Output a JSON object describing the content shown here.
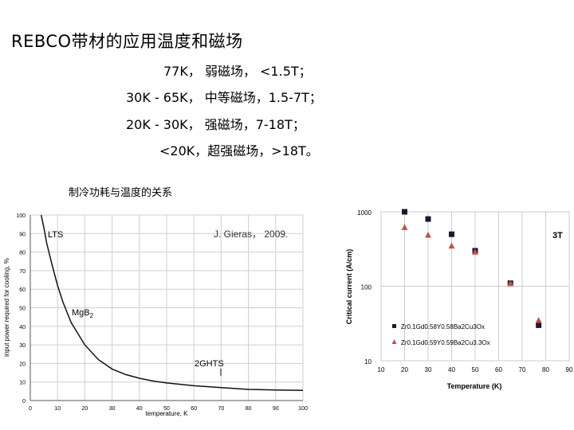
{
  "title": "REBCO带材的应用温度和磁场",
  "lines": [
    "77K， 弱磁场， <1.5T；",
    "30K - 65K， 中等磁场，1.5-7T；",
    "20K - 30K， 强磁场，7-18T；",
    "<20K，超强磁场，>18T。"
  ],
  "subtitle": "制冷功耗与温度的关系",
  "left_chart": {
    "citation": "J. Gieras， 2009.",
    "labels": {
      "lts": "LTS",
      "mgb2": "MgB",
      "mgb2_sub": "2",
      "ghts": "2GHTS"
    },
    "ylabel": "input power required for cooling, %",
    "xlabel": "temperature, K",
    "xticks": [
      "0",
      "10",
      "20",
      "30",
      "40",
      "50",
      "60",
      "70",
      "80",
      "90",
      "100"
    ],
    "yticks": [
      "0",
      "10",
      "20",
      "30",
      "40",
      "50",
      "60",
      "70",
      "80",
      "90",
      "100"
    ]
  },
  "right_chart": {
    "field_label": "3T",
    "ylabel": "Critical current (A/cm)",
    "xlabel": "Temperature (K)",
    "xticks": [
      "10",
      "20",
      "30",
      "40",
      "50",
      "60",
      "70",
      "80",
      "90"
    ],
    "yticks": [
      "10",
      "100",
      "1000"
    ],
    "legend": [
      "Zr0.1Gd0.58Y0.58Ba2Cu3Ox",
      "Zr0.1Gd0.59Y0.59Ba2Cu3.3Ox"
    ]
  },
  "chart_data": [
    {
      "type": "line",
      "xlabel": "temperature, K",
      "ylabel": "input power required for cooling, %",
      "xlim": [
        0,
        100
      ],
      "ylim": [
        0,
        100
      ],
      "grid": true,
      "series": [
        {
          "x": [
            4,
            5,
            6,
            8,
            10,
            12,
            15,
            20,
            25,
            30,
            35,
            40,
            45,
            50,
            60,
            70,
            80,
            90,
            100
          ],
          "y": [
            100,
            93,
            85,
            73,
            62,
            53,
            42,
            30,
            22,
            17,
            14,
            12,
            10.5,
            9.5,
            8,
            7,
            6,
            5.7,
            5.5
          ]
        }
      ]
    },
    {
      "type": "scatter",
      "xlabel": "Temperature (K)",
      "ylabel": "Critical current (A/cm)",
      "xlim": [
        10,
        90
      ],
      "ylim": [
        10,
        1000
      ],
      "yscale": "log",
      "grid": true,
      "series": [
        {
          "name": "Zr0.1Gd0.58Y0.58Ba2Cu3Ox",
          "marker": "square",
          "color": "#1a1a2e",
          "x": [
            20,
            30,
            40,
            50,
            65,
            77
          ],
          "y": [
            1000,
            800,
            500,
            300,
            110,
            30
          ]
        },
        {
          "name": "Zr0.1Gd0.59Y0.59Ba2Cu3.3Ox",
          "marker": "triangle",
          "color": "#c0504d",
          "x": [
            20,
            30,
            40,
            50,
            65,
            77
          ],
          "y": [
            620,
            490,
            350,
            290,
            110,
            35
          ]
        }
      ]
    }
  ]
}
